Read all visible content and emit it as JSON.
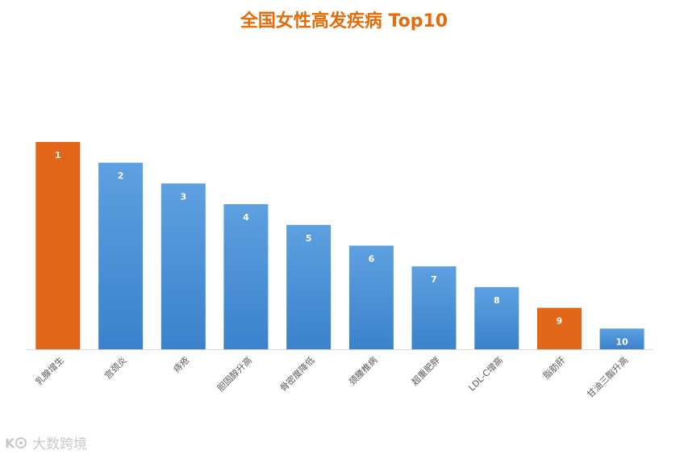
{
  "colors": {
    "title": "#E46C0A",
    "bar_default": "#3F8AD4",
    "bar_default_light": "#5EA0E0",
    "bar_highlight": "#E2661A",
    "bar_label": "#ffffff",
    "axis": "#d9d9d9",
    "tick_label": "#595959",
    "watermark": "#c9c9c9"
  },
  "watermark": {
    "text": "大数跨境",
    "icon": "logo-mark"
  },
  "chart_data": {
    "type": "bar",
    "title": "全国女性高发疾病 Top10",
    "xlabel": "",
    "ylabel": "",
    "categories": [
      "乳腺增生",
      "宫颈炎",
      "痔疮",
      "胆固醇升高",
      "骨密度降低",
      "颈腰椎病",
      "超重肥胖",
      "LDL-C增高",
      "脂肪肝",
      "甘油三酯升高"
    ],
    "values": [
      10,
      9,
      8,
      7,
      6,
      5,
      4,
      3,
      2,
      1
    ],
    "data_labels": [
      "1",
      "2",
      "3",
      "4",
      "5",
      "6",
      "7",
      "8",
      "9",
      "10"
    ],
    "highlighted": [
      true,
      false,
      false,
      false,
      false,
      false,
      false,
      false,
      true,
      false
    ],
    "ylim": [
      0,
      10
    ],
    "grid": false,
    "legend": "none"
  }
}
